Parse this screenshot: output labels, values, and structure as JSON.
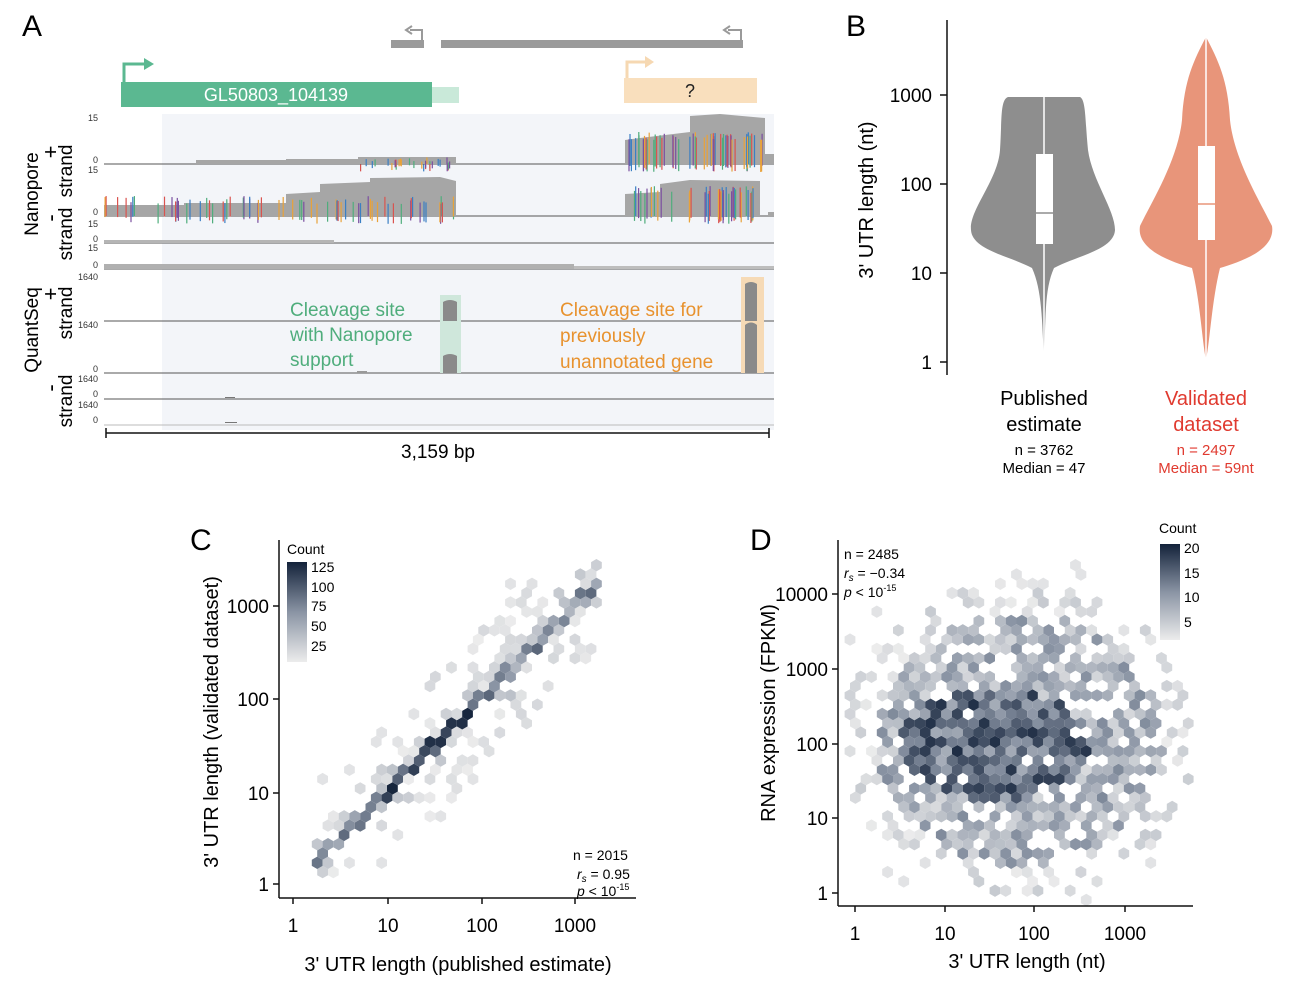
{
  "panels": {
    "A": {
      "label": "A",
      "gene_name": "GL50803_104139",
      "unknown_gene": "?",
      "track_group_1": "Nanopore",
      "track_group_2": "QuantSeq",
      "plus_strand_sign": "+",
      "minus_strand_sign": "-",
      "strand_word": "strand",
      "nanopore_scale_max": "15",
      "quantseq_scale_max": "1640",
      "scale_min": "0",
      "annotation_nanopore": [
        "Cleavage site",
        "with Nanopore",
        "support"
      ],
      "annotation_unannotated": [
        "Cleavage site for",
        "previously",
        "unannotated gene"
      ],
      "scale_bar": "3,159 bp",
      "colors": {
        "gene": "#5bb891",
        "unknown": "#f9dfbd",
        "green_text": "#4fad7c",
        "orange_text": "#e8922e",
        "coverage": "#a6a6a6"
      }
    },
    "B": {
      "label": "B",
      "ylabel": "3' UTR length (nt)",
      "yticks": [
        "1",
        "10",
        "100",
        "1000"
      ],
      "groups": [
        {
          "name_line1": "Published",
          "name_line2": "estimate",
          "n": "n = 3762",
          "median": "Median = 47",
          "color": "#8e8e8e",
          "text_color": "#111111"
        },
        {
          "name_line1": "Validated",
          "name_line2": "dataset",
          "n": "n = 2497",
          "median": "Median = 59nt",
          "color": "#e8957a",
          "text_color": "#e03a2f"
        }
      ]
    },
    "C": {
      "label": "C",
      "xlabel": "3' UTR length (published estimate)",
      "ylabel": "3' UTR length (validated dataset)",
      "xticks": [
        "1",
        "10",
        "100",
        "1000"
      ],
      "yticks": [
        "1",
        "10",
        "100",
        "1000"
      ],
      "legend_title": "Count",
      "legend_ticks": [
        "125",
        "100",
        "75",
        "50",
        "25"
      ],
      "stat_n": "n = 2015",
      "stat_r_sym": "r",
      "stat_r_sub": "s",
      "stat_r_val": " = 0.95",
      "stat_p_sym": "p",
      "stat_p_lt": " < 10",
      "stat_p_exp": "-15"
    },
    "D": {
      "label": "D",
      "xlabel": "3' UTR length (nt)",
      "ylabel": "RNA expression (FPKM)",
      "xticks": [
        "1",
        "10",
        "100",
        "1000"
      ],
      "yticks": [
        "1",
        "10",
        "100",
        "1000",
        "10000"
      ],
      "legend_title": "Count",
      "legend_ticks": [
        "20",
        "15",
        "10",
        "5"
      ],
      "stat_n": "n = 2485",
      "stat_r_sym": "r",
      "stat_r_sub": "s",
      "stat_r_val": " = −0.34",
      "stat_p_sym": "p",
      "stat_p_lt": " < 10",
      "stat_p_exp": "-15"
    }
  }
}
